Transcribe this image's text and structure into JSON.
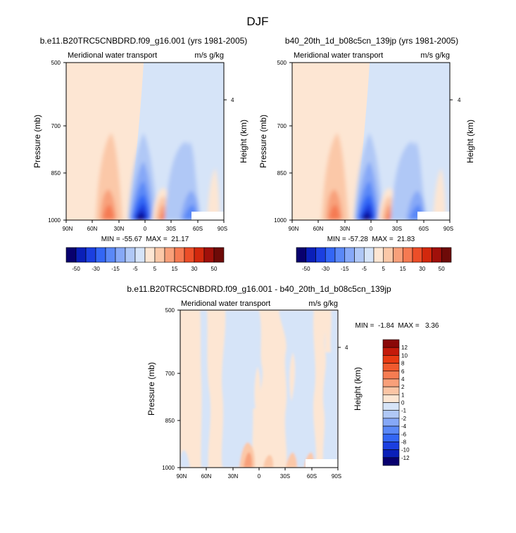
{
  "figure_title": "DJF",
  "panels": [
    {
      "title": "b.e11.B20TRC5CNBDRD.f09_g16.001 (yrs 1981-2005)",
      "left_label": "Meridional water transport",
      "right_label": "m/s g/kg",
      "stats": "MIN = -55.67  MAX =  21.17"
    },
    {
      "title": "b40_20th_1d_b08c5cn_139jp (yrs 1981-2005)",
      "left_label": "Meridional water transport",
      "right_label": "m/s g/kg",
      "stats": "MIN = -57.28  MAX =  21.83"
    },
    {
      "title": "b.e11.B20TRC5CNBDRD.f09_g16.001 - b40_20th_1d_b08c5cn_139jp",
      "left_label": "Meridional water transport",
      "right_label": "m/s g/kg",
      "stats": "MIN =  -1.84  MAX =   3.36"
    }
  ],
  "axes": {
    "ylabel": "Pressure (mb)",
    "y2label": "Height (km)",
    "y_ticks": [
      "500",
      "700",
      "850",
      "1000"
    ],
    "y2_ticks": [
      "4"
    ],
    "x_ticks": [
      "90N",
      "60N",
      "30N",
      "0",
      "30S",
      "60S",
      "90S"
    ]
  },
  "colorbars": {
    "main": {
      "labels": [
        "-50",
        "-30",
        "-15",
        "-5",
        "5",
        "15",
        "30",
        "50"
      ],
      "colors": [
        "#08006e",
        "#0a1fb8",
        "#1b3fe0",
        "#3366f5",
        "#5a88f7",
        "#86a8f7",
        "#b0c8f6",
        "#d6e4f8",
        "#fde6d3",
        "#fbc8a8",
        "#f8a07a",
        "#f57a52",
        "#ec4e28",
        "#d2280d",
        "#a0100a",
        "#6e0a08"
      ]
    },
    "diff": {
      "labels": [
        "12",
        "10",
        "8",
        "6",
        "4",
        "2",
        "1",
        "0",
        "-1",
        "-2",
        "-4",
        "-6",
        "-8",
        "-10",
        "-12"
      ],
      "colors": [
        "#8a0808",
        "#c41a0a",
        "#e83a12",
        "#f05a2e",
        "#f57c52",
        "#f8a07a",
        "#fbc5a5",
        "#fde6d3",
        "#d6e4f8",
        "#b0c8f6",
        "#86a8f7",
        "#5a88f7",
        "#3366f5",
        "#1b3fe0",
        "#0a1fb8",
        "#08006e"
      ]
    }
  },
  "chart_data": [
    {
      "type": "heatmap",
      "title": "b.e11.B20TRC5CNBDRD.f09_g16.001 (yrs 1981-2005)",
      "subtitle_left": "Meridional water transport",
      "units": "m/s g/kg",
      "xlabel": "",
      "ylabel": "Pressure (mb)",
      "y2label": "Height (km)",
      "x": [
        "90N",
        "60N",
        "30N",
        "0",
        "30S",
        "60S",
        "90S"
      ],
      "y": [
        1000,
        850,
        700,
        500
      ],
      "min": -55.67,
      "max": 21.17,
      "levels": [
        -50,
        -30,
        -15,
        -5,
        5,
        15,
        30,
        50
      ],
      "features": [
        {
          "lat": 52,
          "p_top": 720,
          "value": 5
        },
        {
          "lat": 45,
          "p_top": 880,
          "value": 15
        },
        {
          "lat": 8,
          "p_top": 760,
          "value": -5
        },
        {
          "lat": 8,
          "p_top": 900,
          "value": -50
        },
        {
          "lat": -22,
          "p_top": 900,
          "value": 15
        },
        {
          "lat": -48,
          "p_top": 720,
          "value": -5
        },
        {
          "lat": -50,
          "p_top": 920,
          "value": -15
        }
      ]
    },
    {
      "type": "heatmap",
      "title": "b40_20th_1d_b08c5cn_139jp (yrs 1981-2005)",
      "subtitle_left": "Meridional water transport",
      "units": "m/s g/kg",
      "xlabel": "",
      "ylabel": "Pressure (mb)",
      "y2label": "Height (km)",
      "x": [
        "90N",
        "60N",
        "30N",
        "0",
        "30S",
        "60S",
        "90S"
      ],
      "y": [
        1000,
        850,
        700,
        500
      ],
      "min": -57.28,
      "max": 21.83,
      "levels": [
        -50,
        -30,
        -15,
        -5,
        5,
        15,
        30,
        50
      ],
      "features": [
        {
          "lat": 52,
          "p_top": 720,
          "value": 5
        },
        {
          "lat": 45,
          "p_top": 880,
          "value": 15
        },
        {
          "lat": 8,
          "p_top": 760,
          "value": -5
        },
        {
          "lat": 8,
          "p_top": 900,
          "value": -50
        },
        {
          "lat": -22,
          "p_top": 900,
          "value": 15
        },
        {
          "lat": -48,
          "p_top": 720,
          "value": -5
        },
        {
          "lat": -50,
          "p_top": 920,
          "value": -15
        }
      ]
    },
    {
      "type": "heatmap",
      "title": "b.e11.B20TRC5CNBDRD.f09_g16.001 - b40_20th_1d_b08c5cn_139jp",
      "subtitle_left": "Meridional water transport",
      "units": "m/s g/kg",
      "xlabel": "",
      "ylabel": "Pressure (mb)",
      "y2label": "Height (km)",
      "x": [
        "90N",
        "60N",
        "30N",
        "0",
        "30S",
        "60S",
        "90S"
      ],
      "y": [
        1000,
        850,
        700,
        500
      ],
      "min": -1.84,
      "max": 3.36,
      "levels": [
        -12,
        -10,
        -8,
        -6,
        -4,
        -2,
        -1,
        0,
        1,
        2,
        4,
        6,
        8,
        10,
        12
      ],
      "features": [
        {
          "lat": 70,
          "p_top": 500,
          "value": 1
        },
        {
          "lat": 18,
          "p_top": 500,
          "value": -1
        },
        {
          "lat": 10,
          "p_top": 880,
          "value": 2
        },
        {
          "lat": -35,
          "p_top": 500,
          "value": 1
        },
        {
          "lat": -60,
          "p_top": 500,
          "value": -1
        }
      ]
    }
  ]
}
